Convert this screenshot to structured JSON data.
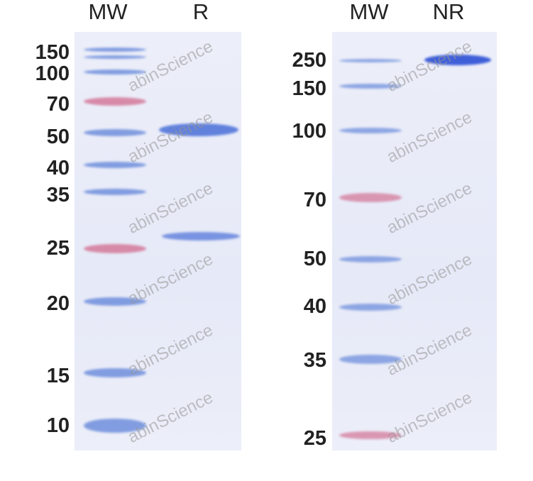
{
  "left_panel": {
    "lane_labels": [
      "MW",
      "R"
    ],
    "mw_markers": [
      "150",
      "100",
      "70",
      "50",
      "40",
      "35",
      "25",
      "20",
      "15",
      "10"
    ]
  },
  "right_panel": {
    "lane_labels": [
      "MW",
      "NR"
    ],
    "mw_markers": [
      "250",
      "150",
      "100",
      "70",
      "50",
      "40",
      "35",
      "25"
    ]
  },
  "watermark": "abinScience",
  "colors": {
    "ladder_blue": "#6f8fdc",
    "ladder_pink": "#d47a9a",
    "sample_band": "#4a6fd8",
    "gel_background": "#e9ebf8"
  }
}
